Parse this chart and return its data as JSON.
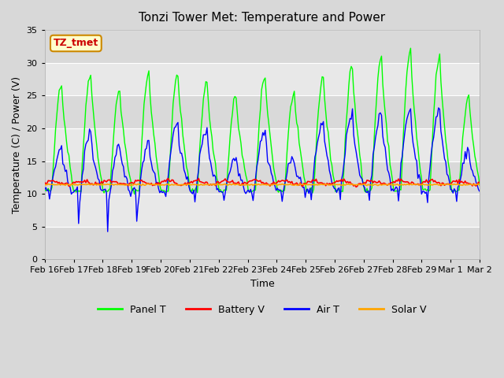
{
  "title": "Tonzi Tower Met: Temperature and Power",
  "xlabel": "Time",
  "ylabel": "Temperature (C) / Power (V)",
  "ylim": [
    0,
    35
  ],
  "yticks": [
    0,
    5,
    10,
    15,
    20,
    25,
    30,
    35
  ],
  "date_labels": [
    "Feb 16",
    "Feb 17",
    "Feb 18",
    "Feb 19",
    "Feb 20",
    "Feb 21",
    "Feb 22",
    "Feb 23",
    "Feb 24",
    "Feb 25",
    "Feb 26",
    "Feb 27",
    "Feb 28",
    "Feb 29",
    "Mar 1",
    "Mar 2"
  ],
  "annotation_text": "TZ_tmet",
  "annotation_bg": "#ffffcc",
  "annotation_border": "#cc8800",
  "annotation_text_color": "#cc0000",
  "colors": {
    "panel_t": "#00ff00",
    "battery_v": "#ff0000",
    "air_t": "#0000ff",
    "solar_v": "#ffa500"
  },
  "legend_labels": [
    "Panel T",
    "Battery V",
    "Air T",
    "Solar V"
  ],
  "n_days": 15,
  "panel_peaks": [
    27,
    28.5,
    26,
    28.5,
    28.5,
    27.3,
    25,
    28,
    25.5,
    28,
    29.5,
    31,
    32,
    31,
    25
  ],
  "air_peaks": [
    16.5,
    19.5,
    17,
    18,
    21,
    19.5,
    15.5,
    19.5,
    15.5,
    21,
    22,
    22.5,
    23,
    23,
    16.5
  ],
  "battery_base": 11.7,
  "solar_base": 11.4
}
